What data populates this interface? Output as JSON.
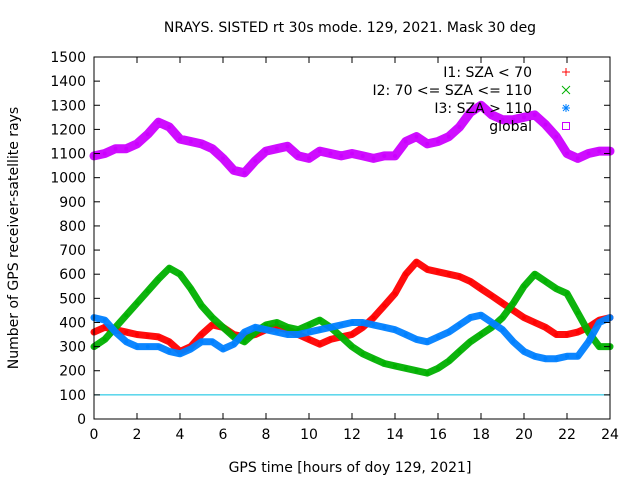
{
  "chart_data": {
    "type": "line",
    "title": "NRAYS. SISTED rt 30s mode. 129, 2021. Mask 30 deg",
    "xlabel": "GPS time [hours of doy 129, 2021]",
    "ylabel": "Number of GPS receiver-satellite rays",
    "xlim": [
      0,
      24
    ],
    "ylim": [
      0,
      1500
    ],
    "x_ticks": [
      0,
      2,
      4,
      6,
      8,
      10,
      12,
      14,
      16,
      18,
      20,
      22,
      24
    ],
    "y_ticks": [
      0,
      100,
      200,
      300,
      400,
      500,
      600,
      700,
      800,
      900,
      1000,
      1100,
      1200,
      1300,
      1400,
      1500
    ],
    "grid": false,
    "legend_position": "top-right",
    "reference_line": {
      "y": 100,
      "color": "#00bfe0"
    },
    "series": [
      {
        "name": "I1: SZA < 70",
        "marker": "+",
        "color": "#ff0000",
        "x": [
          0,
          0.5,
          1,
          1.5,
          2,
          2.5,
          3,
          3.5,
          4,
          4.5,
          5,
          5.5,
          6,
          6.5,
          7,
          7.5,
          8,
          8.5,
          9,
          9.5,
          10,
          10.5,
          11,
          11.5,
          12,
          12.5,
          13,
          13.5,
          14,
          14.5,
          15,
          15.5,
          16,
          16.5,
          17,
          17.5,
          18,
          18.5,
          19,
          19.5,
          20,
          20.5,
          21,
          21.5,
          22,
          22.5,
          23,
          23.5,
          24
        ],
        "values": [
          360,
          380,
          370,
          360,
          350,
          345,
          340,
          320,
          280,
          300,
          350,
          390,
          380,
          350,
          340,
          350,
          370,
          380,
          370,
          350,
          330,
          310,
          330,
          340,
          350,
          380,
          420,
          470,
          520,
          600,
          650,
          620,
          610,
          600,
          590,
          570,
          540,
          510,
          480,
          450,
          420,
          400,
          380,
          350,
          350,
          360,
          380,
          410,
          420
        ]
      },
      {
        "name": "I2: 70 <= SZA <= 110",
        "marker": "x",
        "color": "#00b000",
        "x": [
          0,
          0.5,
          1,
          1.5,
          2,
          2.5,
          3,
          3.5,
          4,
          4.5,
          5,
          5.5,
          6,
          6.5,
          7,
          7.5,
          8,
          8.5,
          9,
          9.5,
          10,
          10.5,
          11,
          11.5,
          12,
          12.5,
          13,
          13.5,
          14,
          14.5,
          15,
          15.5,
          16,
          16.5,
          17,
          17.5,
          18,
          18.5,
          19,
          19.5,
          20,
          20.5,
          21,
          21.5,
          22,
          22.5,
          23,
          23.5,
          24
        ],
        "values": [
          300,
          330,
          380,
          430,
          480,
          530,
          580,
          625,
          600,
          540,
          470,
          420,
          380,
          340,
          320,
          360,
          390,
          400,
          380,
          370,
          390,
          410,
          380,
          340,
          300,
          270,
          250,
          230,
          220,
          210,
          200,
          190,
          210,
          240,
          280,
          320,
          350,
          380,
          420,
          480,
          550,
          600,
          570,
          540,
          520,
          440,
          360,
          300,
          300
        ]
      },
      {
        "name": "I3: SZA > 110",
        "marker": "*",
        "color": "#0080ff",
        "x": [
          0,
          0.5,
          1,
          1.5,
          2,
          2.5,
          3,
          3.5,
          4,
          4.5,
          5,
          5.5,
          6,
          6.5,
          7,
          7.5,
          8,
          8.5,
          9,
          9.5,
          10,
          10.5,
          11,
          11.5,
          12,
          12.5,
          13,
          13.5,
          14,
          14.5,
          15,
          15.5,
          16,
          16.5,
          17,
          17.5,
          18,
          18.5,
          19,
          19.5,
          20,
          20.5,
          21,
          21.5,
          22,
          22.5,
          23,
          23.5,
          24
        ],
        "values": [
          420,
          410,
          360,
          320,
          300,
          300,
          300,
          280,
          270,
          290,
          320,
          320,
          290,
          310,
          360,
          380,
          370,
          360,
          350,
          350,
          360,
          370,
          380,
          390,
          400,
          400,
          390,
          380,
          370,
          350,
          330,
          320,
          340,
          360,
          390,
          420,
          430,
          400,
          370,
          320,
          280,
          260,
          250,
          250,
          260,
          260,
          320,
          400,
          420
        ]
      },
      {
        "name": "global",
        "marker": "square",
        "color": "#cc00ff",
        "x": [
          0,
          0.5,
          1,
          1.5,
          2,
          2.5,
          3,
          3.5,
          4,
          4.5,
          5,
          5.5,
          6,
          6.5,
          7,
          7.5,
          8,
          8.5,
          9,
          9.5,
          10,
          10.5,
          11,
          11.5,
          12,
          12.5,
          13,
          13.5,
          14,
          14.5,
          15,
          15.5,
          16,
          16.5,
          17,
          17.5,
          18,
          18.5,
          19,
          19.5,
          20,
          20.5,
          21,
          21.5,
          22,
          22.5,
          23,
          23.5,
          24
        ],
        "values": [
          1090,
          1100,
          1120,
          1120,
          1140,
          1180,
          1230,
          1210,
          1160,
          1150,
          1140,
          1120,
          1080,
          1030,
          1020,
          1070,
          1110,
          1120,
          1130,
          1090,
          1080,
          1110,
          1100,
          1090,
          1100,
          1090,
          1080,
          1090,
          1090,
          1150,
          1170,
          1140,
          1150,
          1170,
          1210,
          1270,
          1300,
          1260,
          1240,
          1240,
          1250,
          1260,
          1220,
          1170,
          1100,
          1080,
          1100,
          1110,
          1110
        ]
      }
    ]
  }
}
